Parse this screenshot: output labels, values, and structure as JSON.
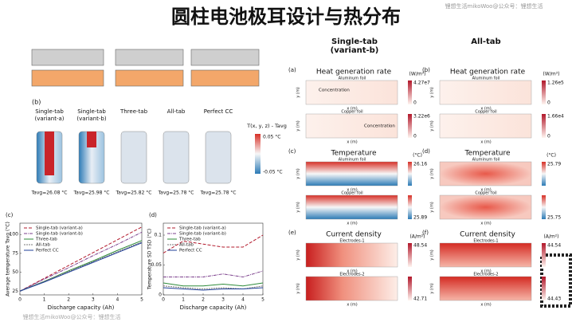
{
  "title": "圆柱电池极耳设计与热分布",
  "watermark_top": "锂想生活mikoWoo@公众号：锂想生活",
  "watermark_bottom": "锂想生活mikoWoo@公众号：锂想生活",
  "panel_b": {
    "label": "(b)",
    "designs": [
      {
        "name": [
          "Single-tab",
          "(variant-a)"
        ],
        "tavg": "Tavg=26.08 °C"
      },
      {
        "name": [
          "Single-tab",
          "(variant-b)"
        ],
        "tavg": "Tavg=25.98 °C"
      },
      {
        "name": [
          "Three-tab"
        ],
        "tavg": "Tavg=25.82 °C"
      },
      {
        "name": [
          "All-tab"
        ],
        "tavg": "Tavg=25.78 °C"
      },
      {
        "name": [
          "Perfect CC"
        ],
        "tavg": "Tavg=25.78 °C"
      }
    ],
    "colorbar_title": "T(x, y, z) - Tavg",
    "colorbar_max": "0.05 °C",
    "colorbar_min": "-0.05 °C"
  },
  "right": {
    "columns": [
      [
        "Single-tab",
        "(variant-b)"
      ],
      [
        "All-tab"
      ]
    ],
    "x_label": "x (m)",
    "y_label": "y (m)",
    "panels": [
      {
        "label": "(a)",
        "title": "Heat generation rate",
        "unit": "(W/m³)",
        "kind": "heat",
        "plots": [
          {
            "sub": "Aluminum foil",
            "max": "4.27e7",
            "min": "0",
            "note": "Concentration"
          },
          {
            "sub": "Copper foil",
            "max": "3.22e6",
            "min": "0",
            "note": "Concentration"
          }
        ]
      },
      {
        "label": "(b)",
        "title": "Heat generation rate",
        "unit": "(W/m³)",
        "kind": "heat",
        "plots": [
          {
            "sub": "Aluminum foil",
            "max": "1.26e5",
            "min": "0"
          },
          {
            "sub": "Copper foil",
            "max": "1.66e4",
            "min": "0"
          }
        ]
      },
      {
        "label": "(c)",
        "title": "Temperature",
        "unit": "(°C)",
        "kind": "temp",
        "plots": [
          {
            "sub": "Aluminum foil",
            "max": "26.16"
          },
          {
            "sub": "Copper foil",
            "min": "25.89"
          }
        ]
      },
      {
        "label": "(d)",
        "title": "Temperature",
        "unit": "(°C)",
        "kind": "temp2",
        "plots": [
          {
            "sub": "Aluminum foil",
            "max": "25.79"
          },
          {
            "sub": "Copper foil",
            "min": "25.75"
          }
        ]
      },
      {
        "label": "(e)",
        "title": "Current density",
        "unit": "(A/m²)",
        "kind": "cur",
        "plots": [
          {
            "sub": "Electrodes-1",
            "max": "48.54"
          },
          {
            "sub": "Electrodes-2",
            "min": "42.71"
          }
        ]
      },
      {
        "label": "(f)",
        "title": "Current density",
        "unit": "(A/m²)",
        "kind": "cur2",
        "plots": [
          {
            "sub": "Electrodes-1",
            "max": "44.54"
          },
          {
            "sub": "Electrodes-2",
            "min": "44.43"
          }
        ]
      }
    ]
  },
  "chart_data": [
    {
      "type": "line",
      "label": "(c)",
      "x_label": "Discharge capacity (Ah)",
      "y_label": "Average temperature Tavg (°C)",
      "x": [
        0,
        1,
        2,
        3,
        4,
        5
      ],
      "xlim": [
        0,
        5
      ],
      "xticks": [
        0,
        1,
        2,
        3,
        4,
        5
      ],
      "ylim": [
        20,
        115
      ],
      "yticks": [
        25,
        50,
        75,
        100
      ],
      "series": [
        {
          "name": "Single-tab (variant-a)",
          "color": "#b2182b",
          "values": [
            25,
            42,
            59,
            76,
            93,
            110
          ]
        },
        {
          "name": "Single-tab (variant-b)",
          "color": "#7b3f8c",
          "values": [
            25,
            41,
            56,
            72,
            87,
            103
          ]
        },
        {
          "name": "Three-tab",
          "color": "#2e8b3a",
          "values": [
            25,
            38,
            52,
            65,
            79,
            92
          ]
        },
        {
          "name": "All-tab",
          "color": "#777777",
          "values": [
            25,
            38,
            51,
            64,
            77,
            90
          ]
        },
        {
          "name": "Perfect CC",
          "color": "#1f3f99",
          "values": [
            25,
            37,
            50,
            63,
            76,
            89
          ]
        }
      ]
    },
    {
      "type": "line",
      "label": "(d)",
      "x_label": "Discharge capacity (Ah)",
      "y_label": "Temperature SD TSD (°C)",
      "x": [
        0,
        1,
        2,
        3,
        4,
        5
      ],
      "xlim": [
        0,
        5
      ],
      "xticks": [
        0,
        1,
        2,
        3,
        4,
        5
      ],
      "ylim": [
        0,
        0.12
      ],
      "yticks": [
        0,
        0.05,
        0.1
      ],
      "series": [
        {
          "name": "Single-tab (variant-a)",
          "color": "#b2182b",
          "values": [
            0.07,
            0.09,
            0.085,
            0.08,
            0.08,
            0.1
          ]
        },
        {
          "name": "Single-tab (variant-b)",
          "color": "#7b3f8c",
          "values": [
            0.03,
            0.03,
            0.03,
            0.035,
            0.03,
            0.04
          ]
        },
        {
          "name": "Three-tab",
          "color": "#2e8b3a",
          "values": [
            0.02,
            0.015,
            0.015,
            0.018,
            0.015,
            0.02
          ]
        },
        {
          "name": "All-tab",
          "color": "#777777",
          "values": [
            0.015,
            0.012,
            0.01,
            0.012,
            0.01,
            0.015
          ]
        },
        {
          "name": "Perfect CC",
          "color": "#1f3f99",
          "values": [
            0.012,
            0.01,
            0.008,
            0.01,
            0.01,
            0.012
          ]
        }
      ]
    }
  ]
}
